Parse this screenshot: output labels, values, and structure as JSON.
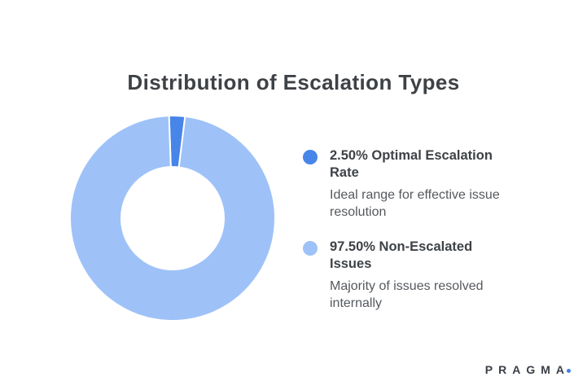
{
  "title": "Distribution of Escalation Types",
  "chart_data": {
    "type": "pie",
    "variant": "donut",
    "title": "Distribution of Escalation Types",
    "slices": [
      {
        "label": "Optimal Escalation Rate",
        "value": 2.5,
        "color": "#4785e8"
      },
      {
        "label": "Non-Escalated Issues",
        "value": 97.5,
        "color": "#9ec2f8"
      }
    ],
    "start_angle_deg": -2,
    "inner_radius_ratio": 0.5,
    "slice_gap_color": "#ffffff",
    "legend_position": "right"
  },
  "legend": {
    "items": [
      {
        "swatch_color": "#4785e8",
        "title": "2.50% Optimal Escalation Rate",
        "description": "Ideal range for effective issue resolution"
      },
      {
        "swatch_color": "#9ec2f8",
        "title": "97.50% Non-Escalated Issues",
        "description": "Majority of issues resolved internally"
      }
    ]
  },
  "branding": {
    "logo_text": "PRAGMA",
    "dot_color": "#4080e8"
  }
}
